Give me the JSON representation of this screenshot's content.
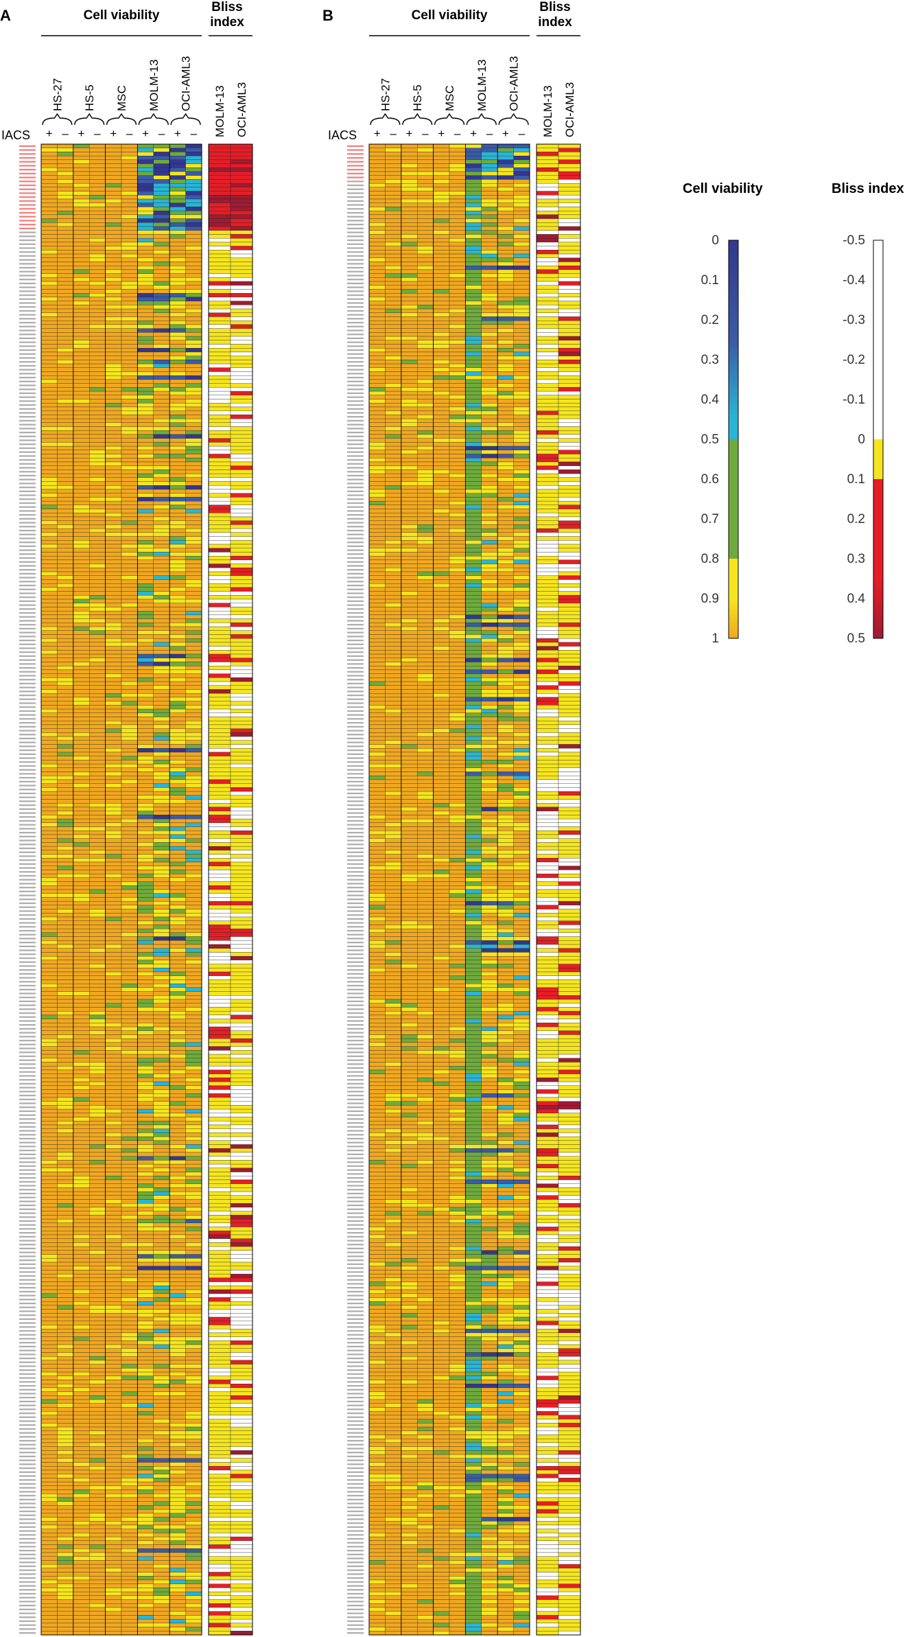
{
  "panels": {
    "A": {
      "letter": "A",
      "group_header": "Cell viability",
      "bliss_header_line1": "Bliss",
      "bliss_header_line2": "index",
      "iacs_label": "IACS",
      "cell_lines": [
        "HS-27",
        "HS-5",
        "MSC",
        "MOLM-13",
        "OCI-AML3"
      ],
      "bliss_lines": [
        "MOLM-13",
        "OCI-AML3"
      ],
      "sign_plus": "+",
      "sign_minus": "–"
    },
    "B": {
      "letter": "B",
      "group_header": "Cell viability",
      "bliss_header_line1": "Bliss",
      "bliss_header_line2": "index",
      "iacs_label": "IACS",
      "cell_lines": [
        "HS-27",
        "HS-5",
        "MSC",
        "MOLM-13",
        "OCI-AML3"
      ],
      "bliss_lines": [
        "MOLM-13",
        "OCI-AML3"
      ],
      "sign_plus": "+",
      "sign_minus": "–"
    }
  },
  "legend": {
    "viability_title": "Cell viability",
    "viability_ticks": [
      "0",
      "0.1",
      "0.2",
      "0.3",
      "0.4",
      "0.5",
      "0.6",
      "0.7",
      "0.8",
      "0.9",
      "1"
    ],
    "bliss_title": "Bliss index",
    "bliss_ticks": [
      "-0.5",
      "-0.4",
      "-0.3",
      "-0.2",
      "-0.1",
      "0",
      "0.1",
      "0.2",
      "0.3",
      "0.4",
      "0.5"
    ]
  },
  "colors": {
    "orange": "#f0a820",
    "yellow": "#f5e51e",
    "green": "#6fab3c",
    "cyan": "#29b5d6",
    "blue": "#3b5ba8",
    "navy": "#34378f",
    "red": "#e41e26",
    "darkred": "#9e1b32",
    "white": "#ffffff",
    "label_red": "#f06060",
    "label_gray": "#9a9a9a"
  },
  "chart_data": [
    {
      "type": "heatmap",
      "panel": "A",
      "columns": [
        "HS-27 +",
        "HS-27 –",
        "HS-5 +",
        "HS-5 –",
        "MSC +",
        "MSC –",
        "MOLM-13 +",
        "MOLM-13 –",
        "OCI-AML3 +",
        "OCI-AML3 –",
        "Bliss MOLM-13",
        "Bliss OCI-AML3"
      ],
      "row_count": 380,
      "highlighted_rows": 22,
      "cell_viability_range": [
        0,
        1
      ],
      "bliss_range": [
        -0.5,
        0.5
      ]
    },
    {
      "type": "heatmap",
      "panel": "B",
      "columns": [
        "HS-27 +",
        "HS-27 –",
        "HS-5 +",
        "HS-5 –",
        "MSC +",
        "MSC –",
        "MOLM-13 +",
        "MOLM-13 –",
        "OCI-AML3 +",
        "OCI-AML3 –",
        "Bliss MOLM-13",
        "Bliss OCI-AML3"
      ],
      "row_count": 380,
      "highlighted_rows": 9,
      "cell_viability_range": [
        0,
        1
      ],
      "bliss_range": [
        -0.5,
        0.5
      ]
    }
  ]
}
